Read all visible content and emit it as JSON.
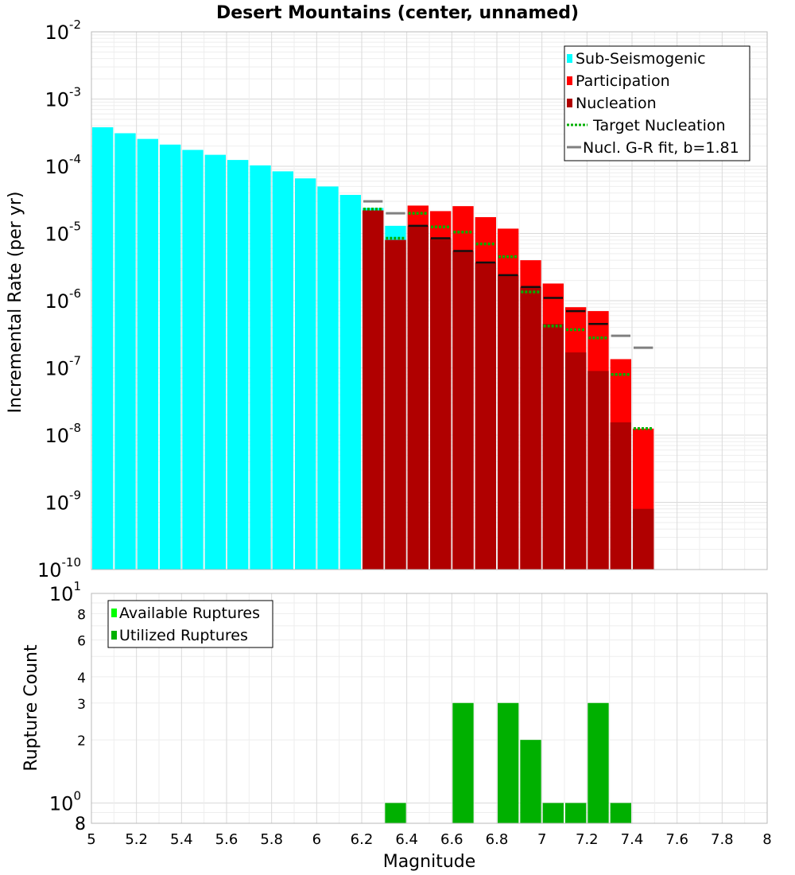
{
  "chart_data": [
    {
      "type": "bar",
      "title": "Desert Mountains (center, unnamed)",
      "ylabel": "Incremental Rate (per yr)",
      "yscale": "log",
      "ylim": [
        1e-10,
        0.01
      ],
      "xlim": [
        5,
        8
      ],
      "y_tick_labels": [
        {
          "base": "10",
          "exp": "-2"
        },
        {
          "base": "10",
          "exp": "-3"
        },
        {
          "base": "10",
          "exp": "-4"
        },
        {
          "base": "10",
          "exp": "-5"
        },
        {
          "base": "10",
          "exp": "-6"
        },
        {
          "base": "10",
          "exp": "-7"
        },
        {
          "base": "10",
          "exp": "-8"
        },
        {
          "base": "10",
          "exp": "-9"
        },
        {
          "base": "10",
          "exp": "-10"
        }
      ],
      "legend": {
        "position": "top-right",
        "entries": [
          {
            "label": "Sub-Seismogenic",
            "color": "#00ffff",
            "style": "box"
          },
          {
            "label": "Participation",
            "color": "#ff0000",
            "style": "box"
          },
          {
            "label": "Nucleation",
            "color": "#b00000",
            "style": "box"
          },
          {
            "label": " Target Nucleation",
            "color": "#00b000",
            "style": "dotted"
          },
          {
            "label": "Nucl. G-R fit, b=1.81",
            "color": "#808080",
            "style": "line"
          }
        ]
      },
      "sub_seismogenic": {
        "name": "Sub-Seismogenic",
        "color": "#00ffff",
        "x": [
          5.05,
          5.15,
          5.25,
          5.35,
          5.45,
          5.55,
          5.65,
          5.75,
          5.85,
          5.95,
          6.05,
          6.15,
          6.25,
          6.35
        ],
        "values": [
          0.00038,
          0.00031,
          0.000255,
          0.00021,
          0.000175,
          0.000148,
          0.000124,
          0.000103,
          8.4e-05,
          6.6e-05,
          5e-05,
          3.75e-05,
          2.4e-05,
          1.3e-05
        ]
      },
      "participation": {
        "name": "Participation",
        "color": "#ff0000",
        "x": [
          6.25,
          6.35,
          6.45,
          6.55,
          6.65,
          6.75,
          6.85,
          6.95,
          7.05,
          7.15,
          7.25,
          7.35,
          7.45
        ],
        "values": [
          2.2e-05,
          8e-06,
          2.6e-05,
          2.15e-05,
          2.55e-05,
          1.75e-05,
          1.18e-05,
          4e-06,
          1.8e-06,
          8e-07,
          7e-07,
          1.35e-07,
          1.25e-08
        ]
      },
      "nucleation": {
        "name": "Nucleation",
        "color": "#b00000",
        "x": [
          6.25,
          6.35,
          6.45,
          6.55,
          6.65,
          6.75,
          6.85,
          6.95,
          7.05,
          7.15,
          7.25,
          7.35,
          7.45
        ],
        "values": [
          2.2e-05,
          8e-06,
          1.3e-05,
          8.5e-06,
          5.5e-06,
          3.7e-06,
          2.4e-06,
          1.6e-06,
          4.5e-07,
          1.7e-07,
          9e-08,
          1.55e-08,
          8e-10
        ]
      },
      "nucleation_marks": {
        "x": [
          6.45,
          6.55,
          6.65,
          6.75,
          6.85,
          6.95,
          7.05,
          7.15,
          7.25
        ],
        "values": [
          1.3e-05,
          8.5e-06,
          5.5e-06,
          3.7e-06,
          2.4e-06,
          1.6e-06,
          1.1e-06,
          7e-07,
          4.5e-07
        ]
      },
      "target_nucleation": {
        "name": "Target Nucleation",
        "color": "#00b000",
        "x": [
          6.25,
          6.35,
          6.45,
          6.55,
          6.65,
          6.75,
          6.85,
          6.95,
          7.05,
          7.15,
          7.25,
          7.35,
          7.45
        ],
        "values": [
          2.3e-05,
          8.5e-06,
          2e-05,
          1.25e-05,
          1.05e-05,
          7e-06,
          4.5e-06,
          1.35e-06,
          4.2e-07,
          3.7e-07,
          2.8e-07,
          8e-08,
          1.25e-08
        ]
      },
      "gr_fit": {
        "name": "Nucl. G-R fit, b=1.81",
        "color": "#808080",
        "x": [
          6.25,
          6.35,
          7.35,
          7.45
        ],
        "values": [
          3e-05,
          2e-05,
          3e-07,
          2e-07
        ]
      }
    },
    {
      "type": "bar",
      "xlabel": "Magnitude",
      "ylabel": "Rupture Count",
      "yscale": "log",
      "ylim": [
        0.8,
        10
      ],
      "xlim": [
        5,
        8
      ],
      "x_ticks": [
        "5",
        "5.2",
        "5.4",
        "5.6",
        "5.8",
        "6",
        "6.2",
        "6.4",
        "6.6",
        "6.8",
        "7",
        "7.2",
        "7.4",
        "7.6",
        "7.8",
        "8"
      ],
      "y_tick_labels": [
        {
          "value": 10,
          "base": "10",
          "exp": "1",
          "major": true
        },
        {
          "value": 8,
          "label": "8"
        },
        {
          "value": 6,
          "label": "6"
        },
        {
          "value": 4,
          "label": "4"
        },
        {
          "value": 3,
          "label": "3"
        },
        {
          "value": 2,
          "label": "2"
        },
        {
          "value": 1,
          "base": "10",
          "exp": "0",
          "major": true
        },
        {
          "value": 0.8,
          "label": "8",
          "major": true
        }
      ],
      "legend": {
        "position": "top-left",
        "entries": [
          {
            "label": "Available Ruptures",
            "color": "#00ff00"
          },
          {
            "label": "Utilized Ruptures",
            "color": "#00b000"
          }
        ]
      },
      "series": [
        {
          "name": "Utilized Ruptures",
          "color": "#00b000",
          "x": [
            6.35,
            6.65,
            6.85,
            6.95,
            7.05,
            7.15,
            7.25,
            7.35
          ],
          "values": [
            1,
            3,
            3,
            2,
            1,
            1,
            3,
            1
          ]
        }
      ]
    }
  ]
}
